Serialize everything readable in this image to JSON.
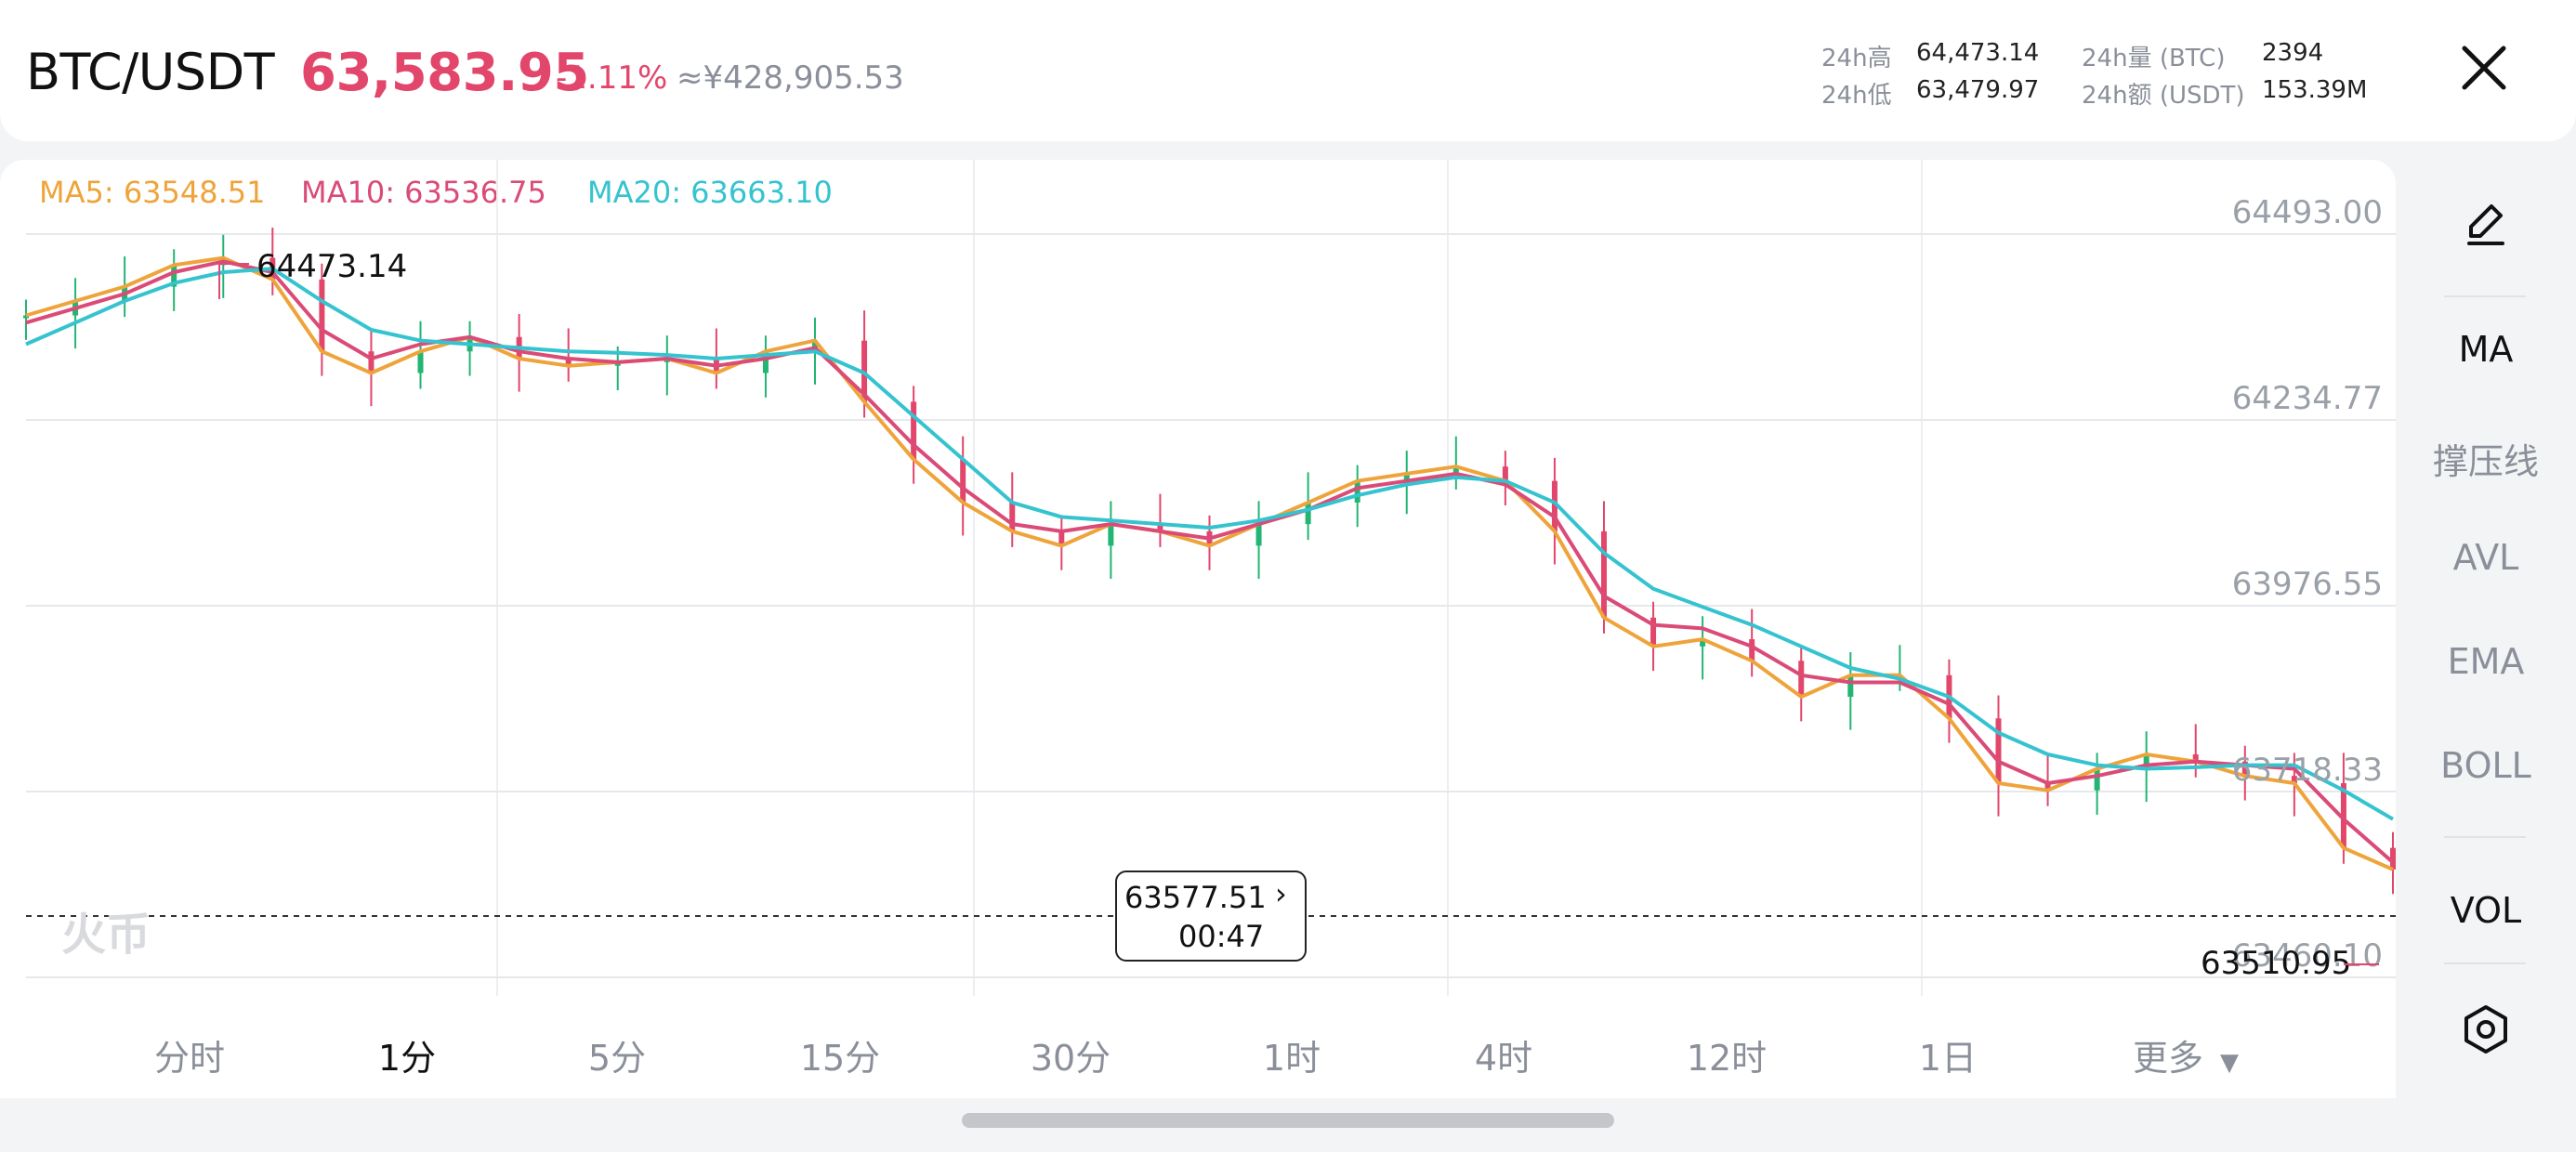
{
  "header": {
    "pair": "BTC/USDT",
    "price": "63,583.95",
    "change": "-1.11%",
    "cny": "≈¥428,905.53",
    "high_label": "24h高",
    "high_value": "64,473.14",
    "low_label": "24h低",
    "low_value": "63,479.97",
    "vol_label": "24h量 (BTC)",
    "vol_value": "2394",
    "amount_label": "24h额 (USDT)",
    "amount_value": "153.39M",
    "close_icon": "close-icon"
  },
  "ma": {
    "ma5": "MA5: 63548.51",
    "ma10": "MA10: 63536.75",
    "ma20": "MA20: 63663.10",
    "colors": {
      "ma5": "#eea43a",
      "ma10": "#da4b77",
      "ma20": "#35c3cf"
    }
  },
  "annotations": {
    "high_marker": "64473.14",
    "low_marker": "63510.95",
    "current_price": "63577.51",
    "countdown": "00:47",
    "watermark": "火币"
  },
  "colors": {
    "up": "#22b573",
    "down": "#e2466b"
  },
  "right_rail": {
    "items": [
      "MA",
      "撑压线",
      "AVL",
      "EMA",
      "BOLL",
      "VOL"
    ],
    "draw_icon": "pen-icon",
    "settings_icon": "settings-icon"
  },
  "tabs": {
    "items": [
      "分时",
      "1分",
      "5分",
      "15分",
      "30分",
      "1时",
      "4时",
      "12时",
      "1日",
      "更多"
    ],
    "active": "1分"
  },
  "chart_data": {
    "type": "candlestick",
    "y_ticks": [
      "64493.00",
      "64234.77",
      "63976.55",
      "63718.33",
      "63460.10"
    ],
    "ylim": [
      63460.1,
      64493.0
    ],
    "grid": true,
    "series": [
      {
        "name": "MA5",
        "values": [
          64380,
          64400,
          64420,
          64450,
          64460,
          64430,
          64330,
          64300,
          64330,
          64350,
          64320,
          64310,
          64315,
          64320,
          64300,
          64330,
          64345,
          64260,
          64180,
          64120,
          64080,
          64060,
          64090,
          64080,
          64060,
          64090,
          64120,
          64150,
          64160,
          64170,
          64150,
          64080,
          63960,
          63920,
          63930,
          63900,
          63850,
          63880,
          63880,
          63820,
          63730,
          63720,
          63750,
          63770,
          63760,
          63740,
          63730,
          63640,
          63610
        ]
      },
      {
        "name": "MA10",
        "values": [
          64370,
          64390,
          64410,
          64440,
          64455,
          64440,
          64360,
          64320,
          64340,
          64350,
          64330,
          64320,
          64315,
          64320,
          64310,
          64320,
          64335,
          64270,
          64200,
          64140,
          64090,
          64080,
          64090,
          64080,
          64070,
          64090,
          64110,
          64140,
          64150,
          64160,
          64145,
          64100,
          63990,
          63950,
          63945,
          63920,
          63880,
          63870,
          63870,
          63840,
          63760,
          63730,
          63740,
          63755,
          63760,
          63755,
          63750,
          63680,
          63620
        ]
      },
      {
        "name": "MA20",
        "values": [
          64340,
          64370,
          64400,
          64425,
          64440,
          64445,
          64400,
          64360,
          64345,
          64340,
          64335,
          64330,
          64328,
          64325,
          64320,
          64325,
          64330,
          64300,
          64240,
          64180,
          64120,
          64100,
          64095,
          64090,
          64085,
          64095,
          64110,
          64130,
          64145,
          64155,
          64150,
          64120,
          64050,
          64000,
          63975,
          63950,
          63920,
          63890,
          63875,
          63850,
          63800,
          63770,
          63755,
          63750,
          63752,
          63755,
          63755,
          63720,
          63680
        ]
      }
    ]
  }
}
